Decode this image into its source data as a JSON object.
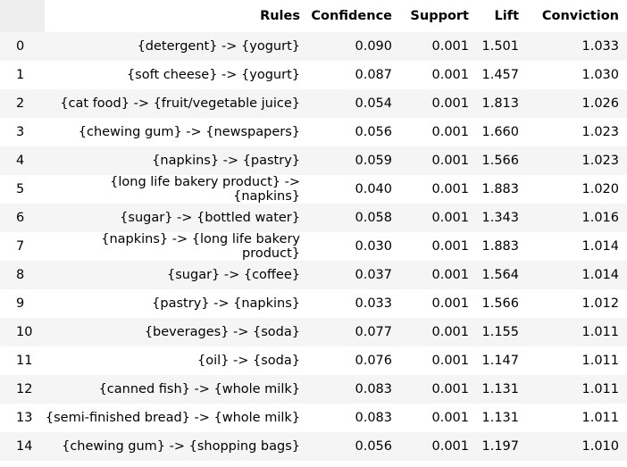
{
  "table": {
    "columns": [
      "Rules",
      "Confidence",
      "Support",
      "Lift",
      "Conviction"
    ],
    "rows": [
      {
        "index": "0",
        "rule": "{detergent} -> {yogurt}",
        "confidence": "0.090",
        "support": "0.001",
        "lift": "1.501",
        "conviction": "1.033"
      },
      {
        "index": "1",
        "rule": "{soft cheese} -> {yogurt}",
        "confidence": "0.087",
        "support": "0.001",
        "lift": "1.457",
        "conviction": "1.030"
      },
      {
        "index": "2",
        "rule": "{cat food} -> {fruit/vegetable juice}",
        "confidence": "0.054",
        "support": "0.001",
        "lift": "1.813",
        "conviction": "1.026"
      },
      {
        "index": "3",
        "rule": "{chewing gum} -> {newspapers}",
        "confidence": "0.056",
        "support": "0.001",
        "lift": "1.660",
        "conviction": "1.023"
      },
      {
        "index": "4",
        "rule": "{napkins} -> {pastry}",
        "confidence": "0.059",
        "support": "0.001",
        "lift": "1.566",
        "conviction": "1.023"
      },
      {
        "index": "5",
        "rule": "{long life bakery product} -> {napkins}",
        "confidence": "0.040",
        "support": "0.001",
        "lift": "1.883",
        "conviction": "1.020"
      },
      {
        "index": "6",
        "rule": "{sugar} -> {bottled water}",
        "confidence": "0.058",
        "support": "0.001",
        "lift": "1.343",
        "conviction": "1.016"
      },
      {
        "index": "7",
        "rule": "{napkins} -> {long life bakery product}",
        "confidence": "0.030",
        "support": "0.001",
        "lift": "1.883",
        "conviction": "1.014"
      },
      {
        "index": "8",
        "rule": "{sugar} -> {coffee}",
        "confidence": "0.037",
        "support": "0.001",
        "lift": "1.564",
        "conviction": "1.014"
      },
      {
        "index": "9",
        "rule": "{pastry} -> {napkins}",
        "confidence": "0.033",
        "support": "0.001",
        "lift": "1.566",
        "conviction": "1.012"
      },
      {
        "index": "10",
        "rule": "{beverages} -> {soda}",
        "confidence": "0.077",
        "support": "0.001",
        "lift": "1.155",
        "conviction": "1.011"
      },
      {
        "index": "11",
        "rule": "{oil} -> {soda}",
        "confidence": "0.076",
        "support": "0.001",
        "lift": "1.147",
        "conviction": "1.011"
      },
      {
        "index": "12",
        "rule": "{canned fish} -> {whole milk}",
        "confidence": "0.083",
        "support": "0.001",
        "lift": "1.131",
        "conviction": "1.011"
      },
      {
        "index": "13",
        "rule": "{semi-finished bread} -> {whole milk}",
        "confidence": "0.083",
        "support": "0.001",
        "lift": "1.131",
        "conviction": "1.011"
      },
      {
        "index": "14",
        "rule": "{chewing gum} -> {shopping bags}",
        "confidence": "0.056",
        "support": "0.001",
        "lift": "1.197",
        "conviction": "1.010"
      }
    ]
  }
}
